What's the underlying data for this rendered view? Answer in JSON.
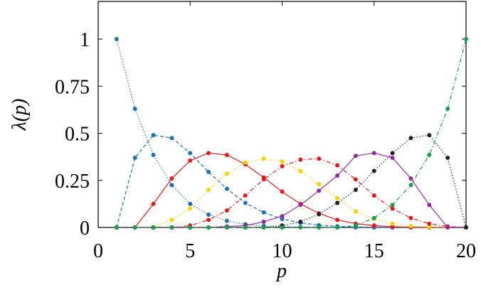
{
  "chart_data": {
    "type": "line",
    "xlabel": "p",
    "ylabel": "λ(p)",
    "x": [
      1,
      2,
      3,
      4,
      5,
      6,
      7,
      8,
      9,
      10,
      11,
      12,
      13,
      14,
      15,
      16,
      17,
      18,
      19,
      20
    ],
    "xlim": [
      0,
      20
    ],
    "xticks": [
      0,
      5,
      10,
      15,
      20
    ],
    "ylim": [
      0,
      1.2
    ],
    "yticks": [
      0,
      0.25,
      0.5,
      0.75,
      1
    ],
    "grid": false,
    "series": [
      {
        "color": "#1f6fb5",
        "dash": "dotted",
        "values": [
          1,
          0.63,
          0.385,
          0.225,
          0.125,
          0.068,
          0.035,
          0.017,
          0.008,
          0.004,
          0.002,
          0.001,
          0,
          0,
          0,
          0,
          0,
          0,
          0,
          0
        ]
      },
      {
        "color": "#1f6fb5",
        "dash": "dashed",
        "values": [
          0,
          0.37,
          0.49,
          0.475,
          0.395,
          0.295,
          0.205,
          0.13,
          0.08,
          0.045,
          0.025,
          0.012,
          0.006,
          0.003,
          0.001,
          0,
          0,
          0,
          0,
          0
        ]
      },
      {
        "color": "#e41a1c",
        "dash": "solid",
        "values": [
          0,
          0,
          0.125,
          0.26,
          0.355,
          0.395,
          0.385,
          0.335,
          0.265,
          0.19,
          0.125,
          0.075,
          0.04,
          0.02,
          0.01,
          0.004,
          0.001,
          0,
          0,
          0
        ]
      },
      {
        "color": "#f5d300",
        "dash": "dotted",
        "values": [
          0,
          0,
          0,
          0.04,
          0.1,
          0.2,
          0.285,
          0.345,
          0.365,
          0.35,
          0.3,
          0.23,
          0.155,
          0.085,
          0.045,
          0.02,
          0.007,
          0.002,
          0,
          0
        ]
      },
      {
        "color": "#e41a1c",
        "dash": "dashdot",
        "values": [
          0,
          0,
          0,
          0,
          0.01,
          0.04,
          0.09,
          0.17,
          0.255,
          0.325,
          0.36,
          0.365,
          0.33,
          0.255,
          0.17,
          0.1,
          0.05,
          0.02,
          0.005,
          0
        ]
      },
      {
        "color": "#8e2c9e",
        "dash": "solid",
        "values": [
          0,
          0,
          0,
          0,
          0,
          0,
          0.005,
          0.01,
          0.03,
          0.06,
          0.12,
          0.195,
          0.275,
          0.38,
          0.395,
          0.37,
          0.26,
          0.12,
          0,
          0
        ]
      },
      {
        "color": "#222222",
        "dash": "dotted",
        "values": [
          0,
          0,
          0,
          0,
          0,
          0,
          0,
          0,
          0,
          0.01,
          0.03,
          0.07,
          0.13,
          0.2,
          0.3,
          0.395,
          0.475,
          0.49,
          0.37,
          0
        ]
      },
      {
        "color": "#1a9e4a",
        "dash": "dashdot",
        "values": [
          0,
          0,
          0,
          0,
          0,
          0,
          0,
          0,
          0,
          0,
          0,
          0,
          0,
          0.01,
          0.05,
          0.12,
          0.225,
          0.385,
          0.63,
          1
        ]
      }
    ]
  }
}
